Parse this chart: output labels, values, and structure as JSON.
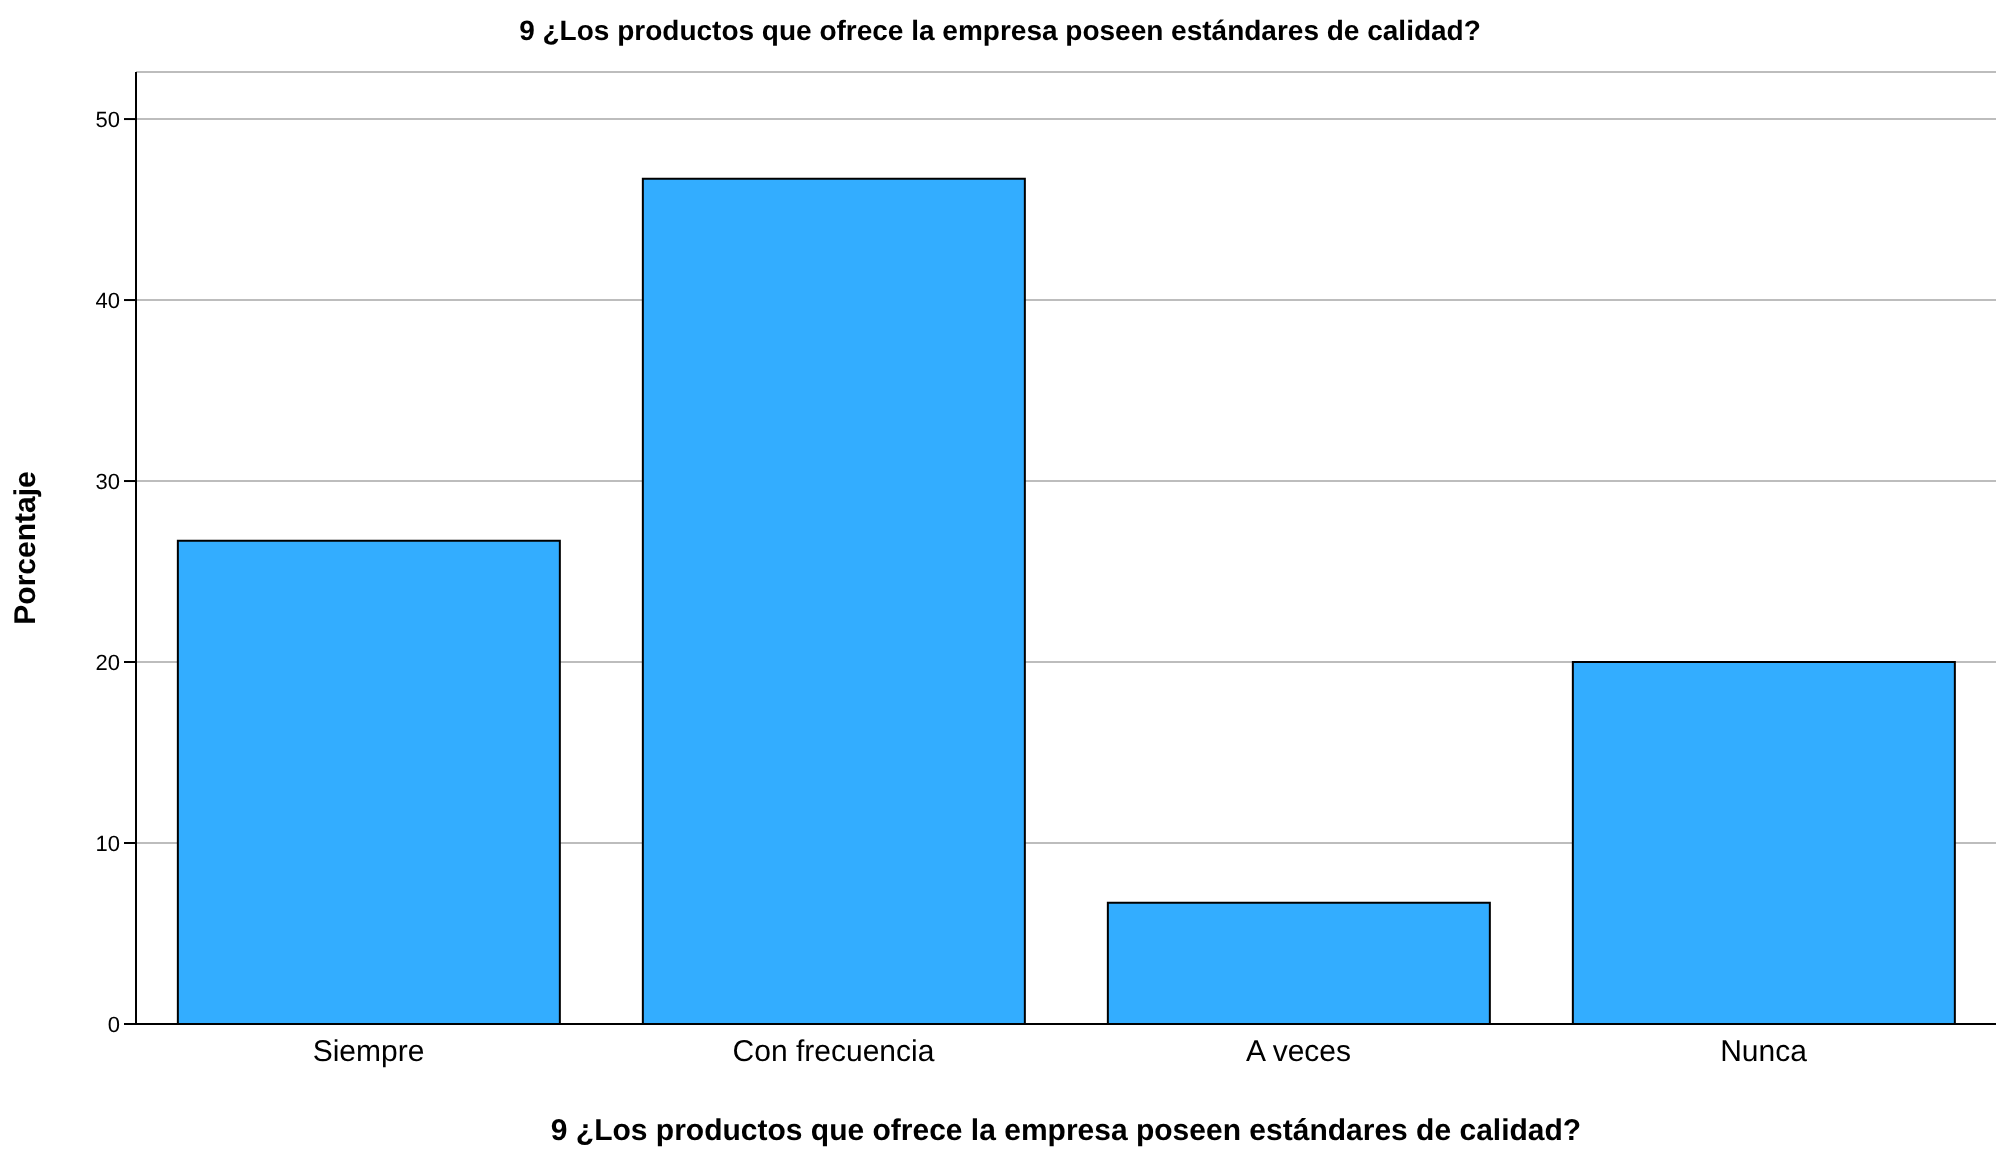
{
  "chart_data": {
    "type": "bar",
    "title": "9 ¿Los productos que ofrece la empresa poseen estándares de calidad?",
    "xlabel": "9 ¿Los productos que ofrece la empresa poseen estándares de calidad?",
    "ylabel": "Porcentaje",
    "categories": [
      "Siempre",
      "Con frecuencia",
      "A veces",
      "Nunca"
    ],
    "values": [
      26.7,
      46.7,
      6.7,
      20
    ],
    "color": "#33adff",
    "ylim": [
      0,
      52.6
    ],
    "yticks": [
      0,
      10,
      20,
      30,
      40,
      50
    ],
    "grid": "y"
  }
}
